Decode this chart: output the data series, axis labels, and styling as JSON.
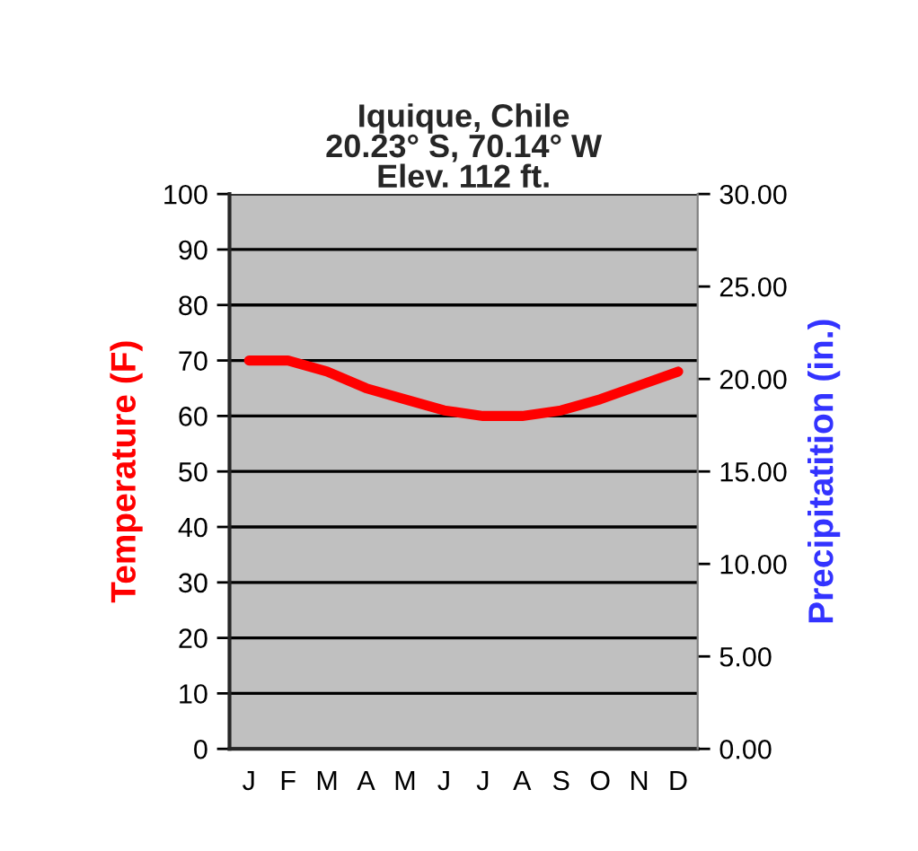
{
  "chart_data": {
    "type": "line",
    "title": "Iquique, Chile\n20.23° S, 70.14° W\nElev. 112 ft.",
    "ylabel": "Temperature (F)",
    "y2label": "Precipitatition (in.)",
    "categories": [
      "J",
      "F",
      "M",
      "A",
      "M",
      "J",
      "J",
      "A",
      "S",
      "O",
      "N",
      "D"
    ],
    "series": [
      {
        "color": "#ff0000",
        "values": [
          70,
          70,
          68,
          65,
          63,
          61,
          60,
          60,
          61,
          63,
          65.5,
          68
        ]
      }
    ],
    "ylim": [
      0,
      100
    ],
    "yticks": [
      0,
      10,
      20,
      30,
      40,
      50,
      60,
      70,
      80,
      90,
      100
    ],
    "y2lim": [
      0,
      30
    ],
    "y2ticks": [
      {
        "value": 0,
        "label": "0.00"
      },
      {
        "value": 5,
        "label": "5.00"
      },
      {
        "value": 10,
        "label": "10.00"
      },
      {
        "value": 15,
        "label": "15.00"
      },
      {
        "value": 20,
        "label": "20.00"
      },
      {
        "value": 25,
        "label": "25.00"
      },
      {
        "value": 30,
        "label": "30.00"
      }
    ],
    "grid": "y",
    "legend": false,
    "line_style": "solid"
  }
}
